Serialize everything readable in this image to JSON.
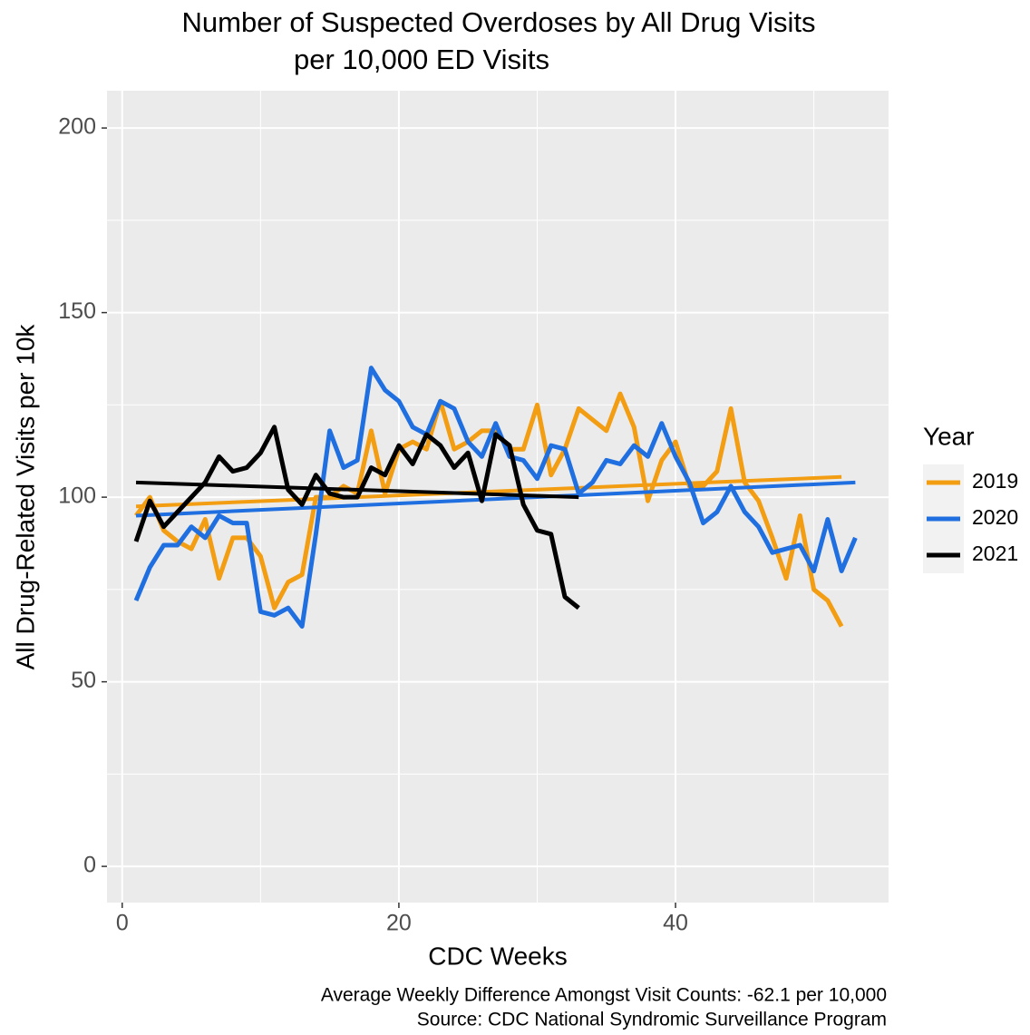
{
  "chart_data": {
    "type": "line",
    "title": [
      "Number of Suspected Overdoses by All Drug Visits",
      "per 10,000 ED Visits"
    ],
    "x_label": "CDC Weeks",
    "y_label": "All Drug-Related Visits per 10k",
    "caption": [
      "Average Weekly Difference Amongst Visit Counts: -62.1 per 10,000",
      "Source: CDC National Syndromic Surveillance Program"
    ],
    "legend_title": "Year",
    "legend_position": "right",
    "grid": true,
    "x": [
      1,
      2,
      3,
      4,
      5,
      6,
      7,
      8,
      9,
      10,
      11,
      12,
      13,
      14,
      15,
      16,
      17,
      18,
      19,
      20,
      21,
      22,
      23,
      24,
      25,
      26,
      27,
      28,
      29,
      30,
      31,
      32,
      33,
      34,
      35,
      36,
      37,
      38,
      39,
      40,
      41,
      42,
      43,
      44,
      45,
      46,
      47,
      48,
      49,
      50,
      51,
      52,
      53
    ],
    "xlim": [
      -1.1,
      55.4
    ],
    "xticks": [
      0,
      20,
      40
    ],
    "ylim": [
      -9.8,
      210.1
    ],
    "yticks": [
      0,
      50,
      100,
      150,
      200
    ],
    "series": [
      {
        "name": "2019",
        "color": "#f29d12",
        "values": [
          95,
          100,
          91,
          88,
          86,
          94,
          78,
          89,
          89,
          84,
          70,
          77,
          79,
          100,
          100,
          103,
          101,
          118,
          101,
          113,
          115,
          113,
          126,
          113,
          115,
          118,
          118,
          113,
          113,
          125,
          106,
          113,
          124,
          121,
          118,
          128,
          119,
          99,
          110,
          115,
          103,
          103,
          107,
          124,
          104,
          99,
          89,
          78,
          95,
          75,
          72,
          65,
          null
        ],
        "trend": [
          97.5,
          105.5
        ]
      },
      {
        "name": "2020",
        "color": "#1f6fe0",
        "values": [
          72,
          81,
          87,
          87,
          92,
          89,
          95,
          93,
          93,
          69,
          68,
          70,
          65,
          90,
          118,
          108,
          110,
          135,
          129,
          126,
          119,
          117,
          126,
          124,
          115,
          111,
          120,
          111,
          110,
          105,
          114,
          113,
          101,
          104,
          110,
          109,
          114,
          111,
          120,
          111,
          104,
          93,
          96,
          103,
          96,
          92,
          85,
          86,
          87,
          80,
          94,
          80,
          89
        ],
        "trend": [
          95,
          104
        ]
      },
      {
        "name": "2021",
        "color": "#000000",
        "values": [
          88,
          99,
          92,
          96,
          100,
          104,
          111,
          107,
          108,
          112,
          119,
          102,
          98,
          106,
          101,
          100,
          100,
          108,
          106,
          114,
          109,
          117,
          114,
          108,
          112,
          99,
          117,
          114,
          98,
          91,
          90,
          73,
          70,
          null,
          null,
          null,
          null,
          null,
          null,
          null,
          null,
          null,
          null,
          null,
          null,
          null,
          null,
          null,
          null,
          null,
          null,
          null,
          null
        ],
        "trend": [
          104,
          100
        ]
      }
    ]
  }
}
